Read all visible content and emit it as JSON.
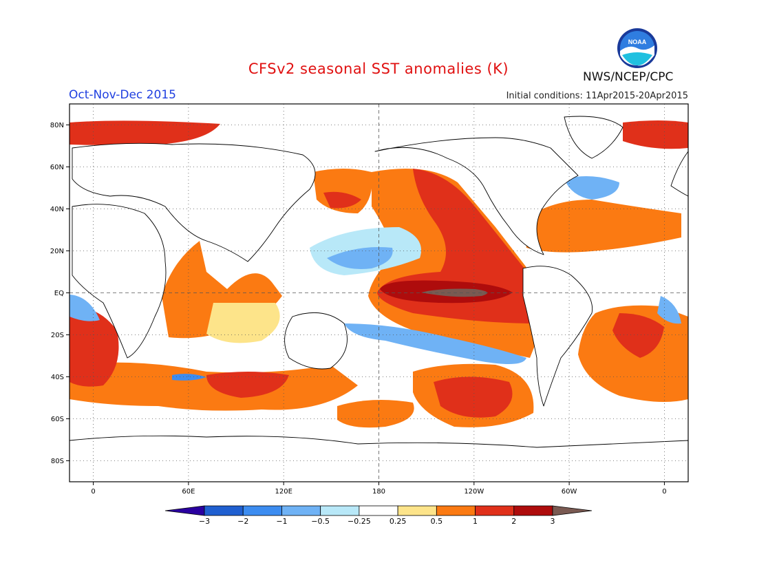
{
  "header": {
    "title": "CFSv2 seasonal SST anomalies (K)",
    "season": "Oct-Nov-Dec 2015",
    "initial_conditions": "Initial conditions: 11Apr2015-20Apr2015",
    "organization": "NWS/NCEP/CPC",
    "logo_text": "NOAA"
  },
  "map": {
    "lat_ticks": [
      "80N",
      "60N",
      "40N",
      "20N",
      "EQ",
      "20S",
      "40S",
      "60S",
      "80S"
    ],
    "lon_ticks": [
      "0",
      "60E",
      "120E",
      "180",
      "120W",
      "60W",
      "0"
    ],
    "grid": "dotted",
    "reference_lines": [
      "equator",
      "dateline"
    ]
  },
  "colorbar": {
    "labels": [
      "-3",
      "-2",
      "-1",
      "-0.5",
      "-0.25",
      "0.25",
      "0.5",
      "1",
      "2",
      "3"
    ],
    "colors": [
      "#2a00a0",
      "#1f5fd0",
      "#3c8cf0",
      "#6fb2f5",
      "#b8e8f8",
      "#ffffff",
      "#fde48a",
      "#fb7a12",
      "#e0301a",
      "#ae0c0c",
      "#7a5a52"
    ],
    "units": "K"
  },
  "colors": {
    "title": "#e01010",
    "season": "#2040e0",
    "land": "#ffffff",
    "coast": "#000000"
  }
}
